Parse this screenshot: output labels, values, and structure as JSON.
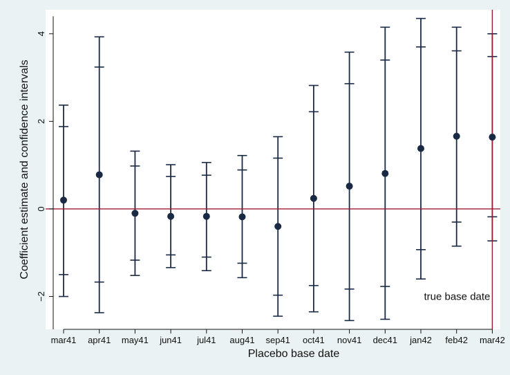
{
  "chart_data": {
    "type": "scatter",
    "title": "",
    "xlabel": "Placebo base date",
    "ylabel": "Coefficient estimate and confidence intervals",
    "categories": [
      "mar41",
      "apr41",
      "may41",
      "jun41",
      "jul41",
      "aug41",
      "sep41",
      "oct41",
      "nov41",
      "dec41",
      "jan42",
      "feb42",
      "mar42"
    ],
    "estimates": [
      0.2,
      0.78,
      -0.1,
      -0.17,
      -0.17,
      -0.18,
      -0.4,
      0.24,
      0.52,
      0.81,
      1.38,
      1.66,
      1.64
    ],
    "ci_inner": [
      [
        -1.5,
        1.88
      ],
      [
        -1.67,
        3.24
      ],
      [
        -1.17,
        0.98
      ],
      [
        -1.05,
        0.74
      ],
      [
        -1.1,
        0.77
      ],
      [
        -1.24,
        0.89
      ],
      [
        -1.97,
        1.16
      ],
      [
        -1.75,
        2.22
      ],
      [
        -1.83,
        2.86
      ],
      [
        -1.77,
        3.4
      ],
      [
        -0.93,
        3.7
      ],
      [
        -0.3,
        3.61
      ],
      [
        -0.18,
        3.48
      ]
    ],
    "ci_outer": [
      [
        -2.0,
        2.37
      ],
      [
        -2.37,
        3.93
      ],
      [
        -1.52,
        1.32
      ],
      [
        -1.34,
        1.01
      ],
      [
        -1.41,
        1.06
      ],
      [
        -1.57,
        1.22
      ],
      [
        -2.45,
        1.65
      ],
      [
        -2.35,
        2.82
      ],
      [
        -2.55,
        3.58
      ],
      [
        -2.52,
        4.15
      ],
      [
        -1.6,
        4.35
      ],
      [
        -0.85,
        4.15
      ],
      [
        -0.73,
        4.0
      ]
    ],
    "ylim": [
      -2.75,
      4.55
    ],
    "yticks": [
      -2,
      0,
      2,
      4
    ],
    "grid": false,
    "reference_line": {
      "y": 0,
      "color": "#9b1b30"
    },
    "true_base_marker": {
      "category": "mar42",
      "label": "true base date",
      "color": "#9b1b30"
    },
    "colors": {
      "marker": "#1a2a44",
      "background": "#eaf2f3",
      "plot_background": "#ffffff"
    }
  }
}
